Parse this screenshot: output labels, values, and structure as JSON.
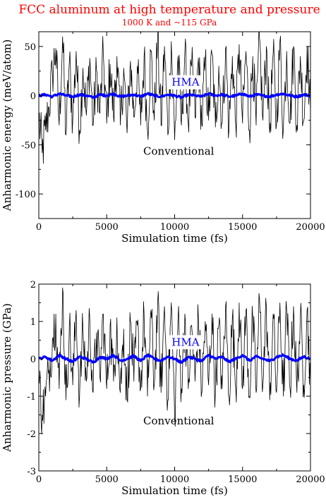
{
  "title": "FCC aluminum at high temperature and pressure",
  "subtitle": "1000 K and ~115 GPa",
  "colors": {
    "title": "#ff0000",
    "conventional": "#000000",
    "hma": "#0000ff",
    "axes": "#000000"
  },
  "chart_data": [
    {
      "type": "line",
      "name": "energy",
      "xlabel": "Simulation time  (fs)",
      "ylabel": "Anharmonic energy  (meV/atom)",
      "xlim": [
        0,
        20000
      ],
      "ylim": [
        -125,
        65
      ],
      "xticks": [
        0,
        5000,
        10000,
        15000,
        20000
      ],
      "yticks": [
        -100,
        -50,
        0,
        50
      ],
      "x_tick_labels": [
        "0",
        "5000",
        "10000",
        "15000",
        "20000"
      ],
      "y_tick_labels": [
        "-100",
        "-50",
        "0",
        "50"
      ],
      "grid": false,
      "annotations": [
        {
          "text": "HMA",
          "x": 10800,
          "y": 10,
          "color": "#0000ff"
        },
        {
          "text": "Conventional",
          "x": 10300,
          "y": -60,
          "color": "#000000"
        }
      ],
      "series": [
        {
          "style": "conventional",
          "x": [
            0,
            250,
            500,
            750,
            1000,
            1250,
            1500,
            1750,
            2000,
            2250,
            2500,
            2750,
            3000,
            3250,
            3500,
            3750,
            4000,
            4250,
            4500,
            4750,
            5000,
            5250,
            5500,
            5750,
            6000,
            6250,
            6500,
            6750,
            7000,
            7250,
            7500,
            7750,
            8000,
            8250,
            8500,
            8750,
            9000,
            9250,
            9500,
            9750,
            10000,
            10250,
            10500,
            10750,
            11000,
            11250,
            11500,
            11750,
            12000,
            12250,
            12500,
            12750,
            13000,
            13250,
            13500,
            13750,
            14000,
            14250,
            14500,
            14750,
            15000,
            15250,
            15500,
            15750,
            16000,
            16250,
            16500,
            16750,
            17000,
            17250,
            17500,
            17750,
            18000,
            18250,
            18500,
            18750,
            19000,
            19250,
            19500,
            19750,
            20000
          ],
          "values": [
            -20,
            -58,
            -35,
            -12,
            22,
            48,
            -30,
            60,
            -40,
            35,
            -25,
            45,
            -35,
            28,
            -20,
            38,
            -30,
            25,
            -18,
            42,
            -28,
            32,
            -22,
            40,
            -30,
            28,
            -38,
            35,
            -22,
            30,
            -30,
            40,
            -35,
            45,
            -25,
            60,
            -30,
            50,
            -40,
            55,
            -45,
            40,
            -30,
            45,
            -28,
            30,
            -22,
            38,
            -30,
            35,
            -25,
            42,
            -32,
            30,
            -28,
            48,
            -35,
            40,
            -30,
            52,
            -28,
            45,
            -35,
            40,
            -30,
            58,
            -25,
            50,
            -38,
            42,
            -30,
            55,
            -35,
            45,
            -28,
            50,
            -30,
            40,
            -25,
            50,
            -20
          ]
        },
        {
          "style": "hma",
          "x": [
            0,
            500,
            1000,
            1500,
            2000,
            2500,
            3000,
            3500,
            4000,
            4500,
            5000,
            5500,
            6000,
            6500,
            7000,
            7500,
            8000,
            8500,
            9000,
            9500,
            10000,
            10500,
            11000,
            11500,
            12000,
            12500,
            13000,
            13500,
            14000,
            14500,
            15000,
            15500,
            16000,
            16500,
            17000,
            17500,
            18000,
            18500,
            19000,
            19500,
            20000
          ],
          "values": [
            0,
            1,
            -1,
            2,
            0,
            -1,
            1,
            0,
            -2,
            1,
            0,
            2,
            -1,
            0,
            1,
            -1,
            2,
            0,
            -1,
            1,
            0,
            -2,
            1,
            0,
            -1,
            2,
            0,
            1,
            -1,
            0,
            2,
            -1,
            1,
            0,
            -1,
            1,
            2,
            0,
            -1,
            1,
            0
          ]
        }
      ]
    },
    {
      "type": "line",
      "name": "pressure",
      "xlabel": "Simulation time  (fs)",
      "ylabel": "Anharmonic pressure (GPa)",
      "xlim": [
        0,
        20000
      ],
      "ylim": [
        -3,
        2
      ],
      "xticks": [
        0,
        5000,
        10000,
        15000,
        20000
      ],
      "yticks": [
        -3,
        -2,
        -1,
        0,
        1,
        2
      ],
      "x_tick_labels": [
        "0",
        "5000",
        "10000",
        "15000",
        "20000"
      ],
      "y_tick_labels": [
        "-3",
        "-2",
        "-1",
        "0",
        "1",
        "2"
      ],
      "grid": false,
      "annotations": [
        {
          "text": "HMA",
          "x": 10800,
          "y": 0.35,
          "color": "#0000ff"
        },
        {
          "text": "Conventional",
          "x": 10300,
          "y": -1.75,
          "color": "#000000"
        }
      ],
      "series": [
        {
          "style": "conventional",
          "x": [
            0,
            250,
            500,
            750,
            1000,
            1250,
            1500,
            1750,
            2000,
            2250,
            2500,
            2750,
            3000,
            3250,
            3500,
            3750,
            4000,
            4250,
            4500,
            4750,
            5000,
            5250,
            5500,
            5750,
            6000,
            6250,
            6500,
            6750,
            7000,
            7250,
            7500,
            7750,
            8000,
            8250,
            8500,
            8750,
            9000,
            9250,
            9500,
            9750,
            10000,
            10250,
            10500,
            10750,
            11000,
            11250,
            11500,
            11750,
            12000,
            12250,
            12500,
            12750,
            13000,
            13250,
            13500,
            13750,
            14000,
            14250,
            14500,
            14750,
            15000,
            15250,
            15500,
            15750,
            16000,
            16250,
            16500,
            16750,
            17000,
            17250,
            17500,
            17750,
            18000,
            18250,
            18500,
            18750,
            19000,
            19250,
            19500,
            19750,
            20000
          ],
          "values": [
            -0.5,
            -1.5,
            -1.0,
            -0.3,
            0.5,
            1.2,
            -0.8,
            1.9,
            -1.1,
            0.9,
            -0.7,
            1.3,
            -1.0,
            0.8,
            -0.6,
            1.1,
            -0.9,
            0.7,
            -0.5,
            1.2,
            -0.8,
            0.9,
            -0.6,
            1.1,
            -0.9,
            0.8,
            -1.1,
            1.0,
            -0.6,
            0.9,
            -0.8,
            1.2,
            -1.0,
            1.3,
            -0.7,
            1.5,
            -0.9,
            1.4,
            -1.1,
            1.5,
            -1.6,
            1.1,
            -0.8,
            1.2,
            -0.8,
            0.9,
            -0.6,
            1.1,
            -0.9,
            1.0,
            -0.7,
            1.2,
            -0.9,
            0.9,
            -0.8,
            1.4,
            -1.0,
            1.1,
            -0.8,
            1.5,
            -0.8,
            1.3,
            -1.0,
            1.1,
            -0.9,
            1.6,
            -0.7,
            1.4,
            -1.1,
            1.2,
            -0.9,
            1.5,
            -1.0,
            1.3,
            -0.8,
            1.4,
            -0.9,
            1.1,
            -0.7,
            1.3,
            -0.6
          ]
        },
        {
          "style": "hma",
          "x": [
            0,
            500,
            1000,
            1500,
            2000,
            2500,
            3000,
            3500,
            4000,
            4500,
            5000,
            5500,
            6000,
            6500,
            7000,
            7500,
            8000,
            8500,
            9000,
            9500,
            10000,
            10500,
            11000,
            11500,
            12000,
            12500,
            13000,
            13500,
            14000,
            14500,
            15000,
            15500,
            16000,
            16500,
            17000,
            17500,
            18000,
            18500,
            19000,
            19500,
            20000
          ],
          "values": [
            0.0,
            0.05,
            -0.05,
            0.1,
            0.0,
            -0.08,
            0.06,
            0.0,
            -0.1,
            0.05,
            0.0,
            0.1,
            -0.05,
            0.0,
            0.08,
            -0.06,
            0.1,
            0.0,
            -0.05,
            0.06,
            0.0,
            -0.1,
            0.05,
            0.0,
            -0.06,
            0.1,
            0.0,
            0.05,
            -0.08,
            0.0,
            0.1,
            -0.05,
            0.06,
            0.0,
            -0.06,
            0.05,
            0.1,
            0.0,
            -0.05,
            0.06,
            0.0
          ]
        }
      ]
    }
  ]
}
